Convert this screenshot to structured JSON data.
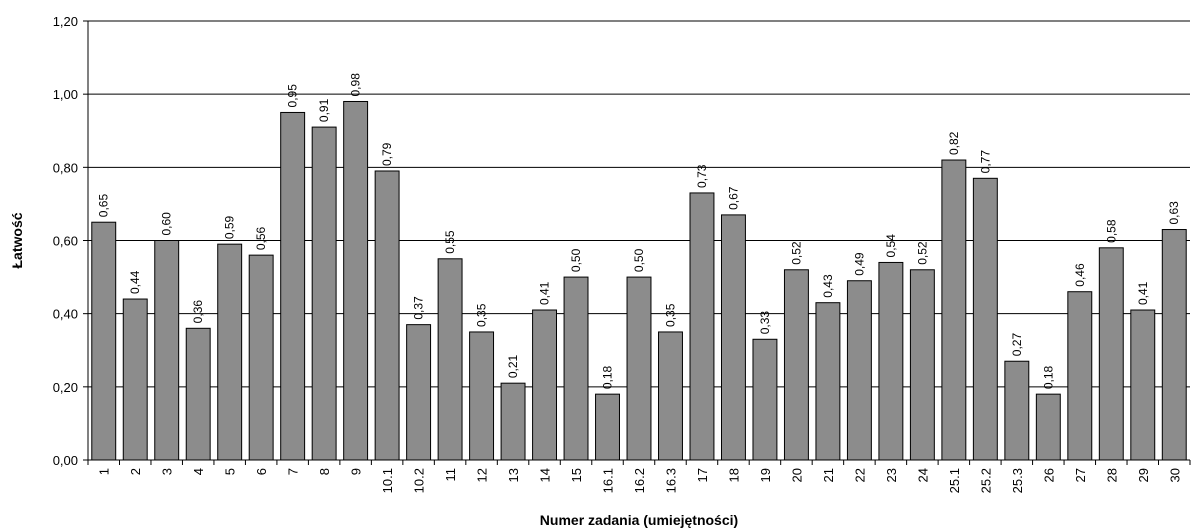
{
  "chart_data": {
    "type": "bar",
    "xlabel": "Numer zadania (umiejętności)",
    "ylabel": "Łatwość",
    "ylim": [
      0,
      1.2
    ],
    "yticks": [
      "0,00",
      "0,20",
      "0,40",
      "0,60",
      "0,80",
      "1,00",
      "1,20"
    ],
    "grid": true,
    "bar_color": "#8c8c8c",
    "categories": [
      "1",
      "2",
      "3",
      "4",
      "5",
      "6",
      "7",
      "8",
      "9",
      "10.1",
      "10.2",
      "11",
      "12",
      "13",
      "14",
      "15",
      "16.1",
      "16.2",
      "16.3",
      "17",
      "18",
      "19",
      "20",
      "21",
      "22",
      "23",
      "24",
      "25.1",
      "25.2",
      "25.3",
      "26",
      "27",
      "28",
      "29",
      "30"
    ],
    "values": [
      0.65,
      0.44,
      0.6,
      0.36,
      0.59,
      0.56,
      0.95,
      0.91,
      0.98,
      0.79,
      0.37,
      0.55,
      0.35,
      0.21,
      0.41,
      0.5,
      0.18,
      0.5,
      0.35,
      0.73,
      0.67,
      0.33,
      0.52,
      0.43,
      0.49,
      0.54,
      0.52,
      0.82,
      0.77,
      0.27,
      0.18,
      0.46,
      0.58,
      0.41,
      0.63
    ],
    "value_labels": [
      "0,65",
      "0,44",
      "0,60",
      "0,36",
      "0,59",
      "0,56",
      "0,95",
      "0,91",
      "0,98",
      "0,79",
      "0,37",
      "0,55",
      "0,35",
      "0,21",
      "0,41",
      "0,50",
      "0,18",
      "0,50",
      "0,35",
      "0,73",
      "0,67",
      "0,33",
      "0,52",
      "0,43",
      "0,49",
      "0,54",
      "0,52",
      "0,82",
      "0,77",
      "0,27",
      "0,18",
      "0,46",
      "0,58",
      "0,41",
      "0,63"
    ]
  }
}
